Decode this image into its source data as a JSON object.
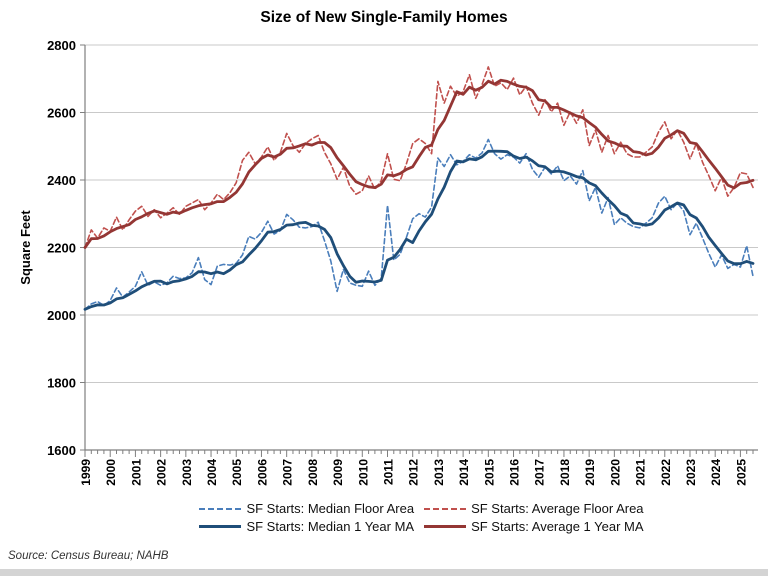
{
  "title": "Size of New Single-Family Homes",
  "source": "Source: Census Bureau; NAHB",
  "colors": {
    "median_quarterly": "#4A7EBB",
    "average_quarterly": "#C0504D",
    "median_ma": "#1F4E79",
    "average_ma": "#943634",
    "gridline": "#c9c9c9",
    "axis": "#7f7f7f",
    "text": "#000000"
  },
  "chart_data": {
    "type": "line",
    "title": "Size of New Single-Family Homes",
    "xlabel": "",
    "ylabel": "Square Feet",
    "ylim": [
      1600,
      2800
    ],
    "ytick_step": 200,
    "grid": "horizontal",
    "legend_position": "bottom",
    "frequency": "quarterly",
    "start": "1999 Q1",
    "end": "2025 Q3",
    "x_year_labels": [
      "1999",
      "2000",
      "2001",
      "2002",
      "2003",
      "2004",
      "2005",
      "2006",
      "2007",
      "2008",
      "2009",
      "2010",
      "2011",
      "2012",
      "2013",
      "2014",
      "2015",
      "2016",
      "2017",
      "2018",
      "2019",
      "2020",
      "2021",
      "2022",
      "2023",
      "2024",
      "2025"
    ],
    "series": [
      {
        "name": "SF Starts: Median Floor Area",
        "style": "dashed",
        "color": "#4A7EBB",
        "values": [
          2017,
          2033,
          2040,
          2028,
          2043,
          2080,
          2053,
          2068,
          2085,
          2128,
          2088,
          2098,
          2088,
          2095,
          2115,
          2108,
          2110,
          2125,
          2170,
          2105,
          2090,
          2145,
          2150,
          2148,
          2153,
          2178,
          2233,
          2225,
          2245,
          2278,
          2240,
          2250,
          2298,
          2282,
          2260,
          2258,
          2262,
          2275,
          2220,
          2160,
          2070,
          2135,
          2095,
          2088,
          2085,
          2130,
          2088,
          2108,
          2325,
          2163,
          2180,
          2230,
          2285,
          2300,
          2290,
          2320,
          2465,
          2440,
          2475,
          2445,
          2455,
          2475,
          2465,
          2480,
          2520,
          2478,
          2462,
          2475,
          2468,
          2450,
          2478,
          2432,
          2408,
          2438,
          2418,
          2442,
          2398,
          2412,
          2388,
          2428,
          2338,
          2378,
          2302,
          2348,
          2268,
          2288,
          2272,
          2262,
          2258,
          2272,
          2288,
          2332,
          2352,
          2312,
          2332,
          2308,
          2238,
          2272,
          2228,
          2182,
          2142,
          2178,
          2138,
          2150,
          2142,
          2205,
          2115
        ]
      },
      {
        "name": "SF Starts: Average Floor Area",
        "style": "dashed",
        "color": "#C0504D",
        "values": [
          2200,
          2252,
          2228,
          2258,
          2248,
          2290,
          2252,
          2282,
          2308,
          2322,
          2292,
          2312,
          2288,
          2302,
          2318,
          2298,
          2322,
          2332,
          2342,
          2312,
          2332,
          2358,
          2342,
          2362,
          2392,
          2458,
          2482,
          2448,
          2468,
          2498,
          2458,
          2482,
          2538,
          2502,
          2482,
          2508,
          2522,
          2532,
          2482,
          2448,
          2402,
          2438,
          2382,
          2358,
          2368,
          2412,
          2372,
          2398,
          2478,
          2402,
          2398,
          2448,
          2508,
          2522,
          2508,
          2478,
          2692,
          2628,
          2678,
          2648,
          2662,
          2712,
          2642,
          2682,
          2735,
          2678,
          2688,
          2668,
          2702,
          2652,
          2678,
          2628,
          2592,
          2638,
          2602,
          2628,
          2562,
          2602,
          2568,
          2608,
          2502,
          2548,
          2482,
          2532,
          2478,
          2512,
          2478,
          2468,
          2468,
          2482,
          2498,
          2542,
          2572,
          2522,
          2548,
          2512,
          2462,
          2508,
          2452,
          2412,
          2368,
          2408,
          2352,
          2378,
          2422,
          2418,
          2378
        ]
      },
      {
        "name": "SF Starts: Median 1 Year MA",
        "style": "solid",
        "color": "#1F4E79",
        "ma_of": 0,
        "window": 4
      },
      {
        "name": "SF Starts: Average 1 Year MA",
        "style": "solid",
        "color": "#943634",
        "ma_of": 1,
        "window": 4
      }
    ]
  }
}
